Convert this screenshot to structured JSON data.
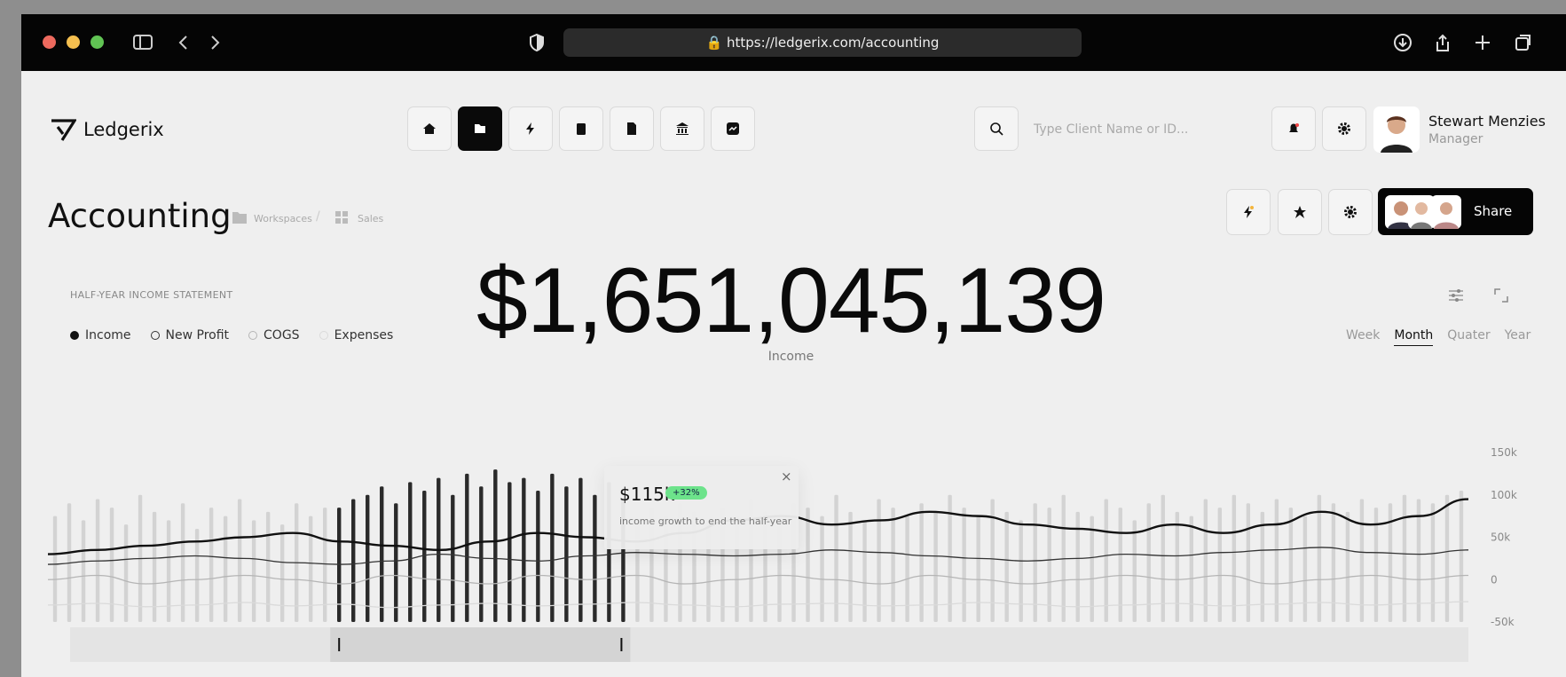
{
  "browser": {
    "url": "https://ledgerix.com/accounting"
  },
  "header": {
    "brand": "Ledgerix",
    "search_placeholder": "Type Client Name or ID...",
    "user": {
      "name": "Stewart Menzies",
      "role": "Manager"
    }
  },
  "page": {
    "title": "Accounting",
    "breadcrumb": [
      "Workspaces",
      "Sales"
    ],
    "share": "Share"
  },
  "summary": {
    "value": "$1,651,045,139",
    "label": "Income"
  },
  "periods": [
    "Week",
    "Month",
    "Quater",
    "Year"
  ],
  "active_period": 1,
  "chart_data": {
    "type": "bar",
    "title": "HALF-YEAR INCOME STATEMENT",
    "ylim": [
      -50000,
      150000
    ],
    "yticks": [
      {
        "value": 150000,
        "label": "150k"
      },
      {
        "value": 100000,
        "label": "100k"
      },
      {
        "value": 50000,
        "label": "50k"
      },
      0,
      {
        "value": -50000,
        "label": "-50k"
      }
    ],
    "bars": {
      "color": "#d3d3d3",
      "selected_color": "#2a2a2a",
      "selected_range": [
        20,
        40
      ],
      "values": [
        75000,
        90000,
        70000,
        95000,
        85000,
        65000,
        100000,
        80000,
        70000,
        90000,
        60000,
        85000,
        75000,
        95000,
        70000,
        80000,
        65000,
        90000,
        75000,
        85000,
        85000,
        95000,
        100000,
        110000,
        90000,
        115000,
        105000,
        120000,
        100000,
        125000,
        110000,
        130000,
        115000,
        120000,
        105000,
        125000,
        110000,
        120000,
        100000,
        115000,
        95000,
        70000,
        85000,
        75000,
        90000,
        80000,
        65000,
        85000,
        75000,
        95000,
        80000,
        70000,
        90000,
        85000,
        75000,
        100000,
        80000,
        70000,
        95000,
        85000,
        75000,
        90000,
        80000,
        100000,
        85000,
        75000,
        95000,
        80000,
        70000,
        90000,
        85000,
        100000,
        80000,
        75000,
        95000,
        85000,
        70000,
        90000,
        100000,
        80000,
        75000,
        95000,
        85000,
        100000,
        90000,
        80000,
        95000,
        85000,
        75000,
        100000,
        90000,
        80000,
        95000,
        85000,
        90000,
        100000,
        95000,
        90000,
        100000,
        105000
      ]
    },
    "series": [
      {
        "name": "Income",
        "color": "#111111",
        "fill": true,
        "values": [
          30000,
          35000,
          40000,
          45000,
          50000,
          55000,
          45000,
          40000,
          35000,
          45000,
          55000,
          50000,
          45000,
          55000,
          70000,
          75000,
          65000,
          70000,
          80000,
          75000,
          65000,
          60000,
          55000,
          65000,
          55000,
          65000,
          80000,
          65000,
          75000,
          95000
        ]
      },
      {
        "name": "New Profit",
        "color": "#333333",
        "fill": false,
        "values": [
          18000,
          22000,
          25000,
          28000,
          25000,
          20000,
          18000,
          22000,
          30000,
          25000,
          22000,
          28000,
          32000,
          30000,
          28000,
          30000,
          35000,
          32000,
          28000,
          25000,
          22000,
          25000,
          30000,
          28000,
          32000,
          35000,
          38000,
          32000,
          30000,
          35000
        ]
      },
      {
        "name": "COGS",
        "color": "#b5b5b5",
        "fill": false,
        "values": [
          0,
          5000,
          -5000,
          0,
          5000,
          0,
          -5000,
          5000,
          0,
          -5000,
          5000,
          0,
          5000,
          -5000,
          0,
          5000,
          0,
          -5000,
          5000,
          0,
          -5000,
          0,
          5000,
          0,
          5000,
          -5000,
          0,
          5000,
          0,
          5000
        ]
      },
      {
        "name": "Expenses",
        "color": "#dadada",
        "fill": false,
        "values": [
          -30000,
          -28000,
          -32000,
          -30000,
          -27000,
          -31000,
          -29000,
          -33000,
          -30000,
          -28000,
          -31000,
          -29000,
          -27000,
          -30000,
          -32000,
          -29000,
          -28000,
          -31000,
          -30000,
          -27000,
          -29000,
          -32000,
          -30000,
          -28000,
          -31000,
          -29000,
          -27000,
          -30000,
          -28000,
          -26000
        ]
      }
    ],
    "annotation": {
      "value": "$115k",
      "badge": "+32%",
      "text": "income growth to end the half-year"
    }
  }
}
